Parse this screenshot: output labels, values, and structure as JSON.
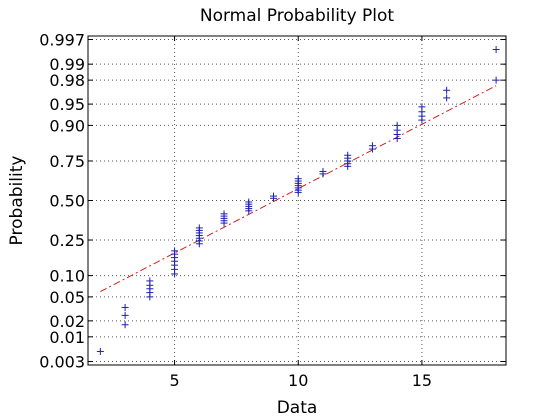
{
  "chart_data": {
    "type": "scatter",
    "title": "Normal Probability Plot",
    "xlabel": "Data",
    "ylabel": "Probability",
    "xlim": [
      1.5,
      18.4
    ],
    "x_ticks": [
      5,
      10,
      15
    ],
    "y_scale": "normal-probability",
    "ylim": [
      0.0025,
      0.9975
    ],
    "y_ticks": [
      0.003,
      0.01,
      0.02,
      0.05,
      0.1,
      0.25,
      0.5,
      0.75,
      0.9,
      0.95,
      0.98,
      0.99,
      0.997
    ],
    "y_tick_labels": [
      "0.003",
      "0.01",
      "0.02",
      "0.05",
      "0.10",
      "0.25",
      "0.50",
      "0.75",
      "0.90",
      "0.95",
      "0.98",
      "0.99",
      "0.997"
    ],
    "grid": true,
    "marker": "+",
    "marker_color": "#1f1fb4",
    "fit_color": "#d02020",
    "points": {
      "x": [
        2,
        3,
        3,
        3,
        4,
        4,
        4,
        4,
        4,
        5,
        5,
        5,
        5,
        5,
        5,
        5,
        6,
        6,
        6,
        6,
        6,
        6,
        6,
        7,
        7,
        7,
        7,
        7,
        8,
        8,
        8,
        8,
        8,
        9,
        9,
        10,
        10,
        10,
        10,
        10,
        10,
        10,
        11,
        11,
        12,
        12,
        12,
        12,
        12,
        13,
        13,
        14,
        14,
        14,
        14,
        15,
        15,
        15,
        15,
        16,
        16,
        18,
        18
      ],
      "y": [
        0.005,
        0.017,
        0.025,
        0.034,
        0.05,
        0.058,
        0.066,
        0.074,
        0.085,
        0.105,
        0.12,
        0.135,
        0.15,
        0.165,
        0.18,
        0.195,
        0.23,
        0.245,
        0.26,
        0.275,
        0.29,
        0.305,
        0.32,
        0.35,
        0.365,
        0.38,
        0.395,
        0.41,
        0.43,
        0.445,
        0.46,
        0.475,
        0.49,
        0.515,
        0.53,
        0.555,
        0.57,
        0.585,
        0.6,
        0.615,
        0.63,
        0.645,
        0.675,
        0.69,
        0.72,
        0.735,
        0.75,
        0.765,
        0.78,
        0.81,
        0.825,
        0.855,
        0.87,
        0.885,
        0.9,
        0.915,
        0.925,
        0.935,
        0.945,
        0.96,
        0.97,
        0.98,
        0.995
      ]
    },
    "fit_line": {
      "x": [
        2,
        18
      ],
      "y": [
        0.06,
        0.975
      ]
    }
  }
}
